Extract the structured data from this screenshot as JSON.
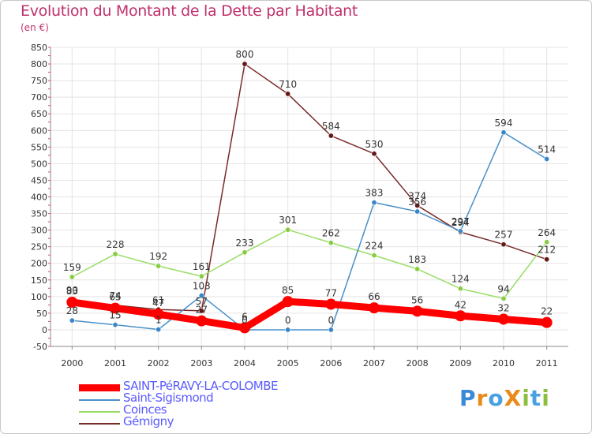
{
  "title": "Evolution du Montant de la Dette par Habitant",
  "subtitle": "(en €)",
  "logo": {
    "text": "ProXiti",
    "letters": [
      {
        "ch": "P",
        "color": "#3a8ad8"
      },
      {
        "ch": "r",
        "color": "#e98a1a"
      },
      {
        "ch": "o",
        "color": "#4aa0e0"
      },
      {
        "ch": "X",
        "color": "#e98a1a"
      },
      {
        "ch": "i",
        "color": "#8cbf3f"
      },
      {
        "ch": "t",
        "color": "#4aa0e0"
      },
      {
        "ch": "i",
        "color": "#8cbf3f"
      }
    ]
  },
  "chart_data": {
    "type": "line",
    "x": [
      "2000",
      "2001",
      "2002",
      "2003",
      "2004",
      "2005",
      "2006",
      "2007",
      "2008",
      "2009",
      "2010",
      "2011"
    ],
    "ylim": [
      -50,
      850
    ],
    "yticks": [
      -50,
      0,
      50,
      100,
      150,
      200,
      250,
      300,
      350,
      400,
      450,
      500,
      550,
      600,
      650,
      700,
      750,
      800,
      850
    ],
    "grid": true,
    "legend_position": "bottom-left",
    "series": [
      {
        "name": "SAINT-PéRAVY-LA-COLOMBE",
        "color": "#ff0000",
        "marker_color": "#ff0000",
        "label_color": "#333333",
        "bold": true,
        "values": [
          83,
          65,
          47,
          27,
          6,
          85,
          77,
          66,
          56,
          42,
          32,
          22
        ]
      },
      {
        "name": "Saint-Sigismond",
        "color": "#4a90c8",
        "marker_color": "#3a86c8",
        "label_color": "#333333",
        "bold": false,
        "values": [
          28,
          15,
          1,
          103,
          0,
          0,
          0,
          383,
          356,
          297,
          594,
          514
        ]
      },
      {
        "name": "Coinces",
        "color": "#99dd66",
        "marker_color": "#88cc44",
        "label_color": "#333333",
        "bold": false,
        "values": [
          159,
          228,
          192,
          161,
          233,
          301,
          262,
          224,
          183,
          124,
          94,
          264
        ]
      },
      {
        "name": "Gémigny",
        "color": "#7a2a2a",
        "marker_color": "#661818",
        "label_color": "#333333",
        "bold": false,
        "values": [
          90,
          74,
          61,
          57,
          800,
          710,
          584,
          530,
          374,
          294,
          257,
          212
        ]
      }
    ],
    "legend_text_colors": [
      "#5a5aff",
      "#5a5aff",
      "#5a5aff",
      "#5a5aff"
    ]
  }
}
